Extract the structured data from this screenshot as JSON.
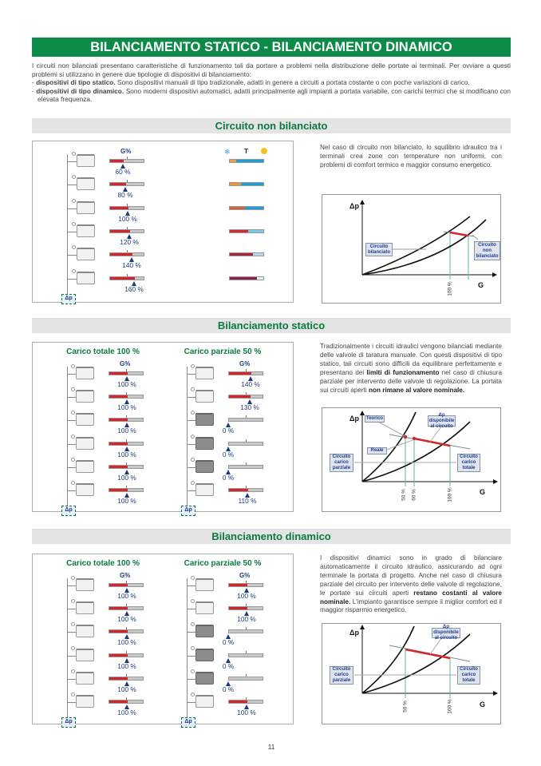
{
  "title": "BILANCIAMENTO STATICO - BILANCIAMENTO DINAMICO",
  "intro": {
    "p1": "I circuiti non bilanciati presentano caratteristiche di funzionamento tali da portare a problemi nella distribuzione delle portate ai terminali. Per ovviare a questi problemi si utilizzano in genere due tipologie di dispositivi di bilanciamento:",
    "items": [
      {
        "bold": "dispositivi di tipo statico.",
        "text": " Sono dispositivi manuali di tipo tradizionale, adatti in genere a circuiti a portata costante o con poche variazioni di carico."
      },
      {
        "bold": "dispositivi di tipo dinamico.",
        "text": " Sono moderni dispositivi automatici, adatti principalmente agli impianti a portata variabile, con carichi termici che si modificano con elevata frequenza."
      }
    ]
  },
  "colors": {
    "accent": "#0b8a48",
    "flow_fill": "#d3262c",
    "marker": "#1d3a7c"
  },
  "labels": {
    "g_percent": "G%",
    "dp": "Δp",
    "temp": "T",
    "axis_y": "Δp",
    "axis_x": "G"
  },
  "sections": [
    {
      "header": "Circuito non bilanciato",
      "rows": [
        {
          "value": "60 %",
          "pct": 60,
          "warm": "#e8a04a",
          "cool": "#1aa0d8",
          "warm_frac": 0.2
        },
        {
          "value": "80 %",
          "pct": 80,
          "warm": "#e8983a",
          "cool": "#1aa0d8",
          "warm_frac": 0.33
        },
        {
          "value": "100 %",
          "pct": 100,
          "warm": "#d9623a",
          "cool": "#1aa0d8",
          "warm_frac": 0.45
        },
        {
          "value": "120 %",
          "pct": 120,
          "warm": "#d42a30",
          "cool": "#7cc8e8",
          "warm_frac": 0.55
        },
        {
          "value": "140 %",
          "pct": 140,
          "warm": "#a8283a",
          "cool": "#b0dcee",
          "warm_frac": 0.68
        },
        {
          "value": "160 %",
          "pct": 160,
          "warm": "#8a2050",
          "cool": "#e0f0f6",
          "warm_frac": 0.8
        }
      ],
      "text": [
        {
          "t": "Nel caso di circuito non bilanciato, lo squilibrio idraulico tra i terminali crea zone con temperature non uniformi, con problemi di comfort termico e maggior consumo energetico."
        }
      ],
      "graph": {
        "labels": [
          "Circuito bilanciato",
          "Circuito non bilanciato"
        ],
        "ticks": [
          "100 %"
        ]
      }
    },
    {
      "header": "Bilanciamento statico",
      "panels": [
        {
          "title": "Carico totale 100 %",
          "rows": [
            {
              "value": "100 %",
              "pct": 100
            },
            {
              "value": "100 %",
              "pct": 100
            },
            {
              "value": "100 %",
              "pct": 100
            },
            {
              "value": "100 %",
              "pct": 100
            },
            {
              "value": "100 %",
              "pct": 100
            },
            {
              "value": "100 %",
              "pct": 100
            }
          ]
        },
        {
          "title": "Carico parziale 50 %",
          "rows": [
            {
              "value": "140 %",
              "pct": 140
            },
            {
              "value": "130 %",
              "pct": 130
            },
            {
              "value": "0 %",
              "pct": 0,
              "closed": true
            },
            {
              "value": "0 %",
              "pct": 0,
              "closed": true
            },
            {
              "value": "0 %",
              "pct": 0,
              "closed": true
            },
            {
              "value": "110 %",
              "pct": 110
            }
          ]
        }
      ],
      "text": [
        {
          "t": "Tradizionalmente i circuiti idraulici vengono bilanciati mediante delle valvole di taratura manuale. Con questi dispositivi di tipo statico, tali circuiti sono difficili da equilibrare perfettamente e presentano dei "
        },
        {
          "t": "limiti di funzionamento",
          "b": true
        },
        {
          "t": " nel caso di chiusura parziale per intervento delle valvole di regolazione. La portata sui circuiti aperti "
        },
        {
          "t": "non rimane al valore nominale.",
          "b": true
        }
      ],
      "graph": {
        "labels": [
          "Teorico",
          "Δp disponibile al circuito",
          "Reale",
          "Circuito carico parziale",
          "Circuito carico totale"
        ],
        "ticks": [
          "50 %",
          "60 %",
          "100 %"
        ]
      }
    },
    {
      "header": "Bilanciamento dinamico",
      "panels": [
        {
          "title": "Carico totale 100 %",
          "rows": [
            {
              "value": "100 %",
              "pct": 100
            },
            {
              "value": "100 %",
              "pct": 100
            },
            {
              "value": "100 %",
              "pct": 100
            },
            {
              "value": "100 %",
              "pct": 100
            },
            {
              "value": "100 %",
              "pct": 100
            },
            {
              "value": "100 %",
              "pct": 100
            }
          ]
        },
        {
          "title": "Carico parziale 50 %",
          "rows": [
            {
              "value": "100 %",
              "pct": 100
            },
            {
              "value": "100 %",
              "pct": 100
            },
            {
              "value": "0 %",
              "pct": 0,
              "closed": true
            },
            {
              "value": "0 %",
              "pct": 0,
              "closed": true
            },
            {
              "value": "0 %",
              "pct": 0,
              "closed": true
            },
            {
              "value": "100 %",
              "pct": 100
            }
          ]
        }
      ],
      "text": [
        {
          "t": "I dispositivi dinamici sono in grado di bilanciare automaticamente il circuito idraulico, assicurando ad ogni terminale la portata di progetto. Anche nel caso di chiusura parziale del circuito per intervento delle valvole di regolazione, le portate sui circuiti aperti "
        },
        {
          "t": "restano costanti al valore nominale.",
          "b": true
        },
        {
          "t": " L'impianto garantisce sempre il miglior comfort ed il maggior risparmio energetico."
        }
      ],
      "graph": {
        "labels": [
          "Δp disponibile al circuito",
          "Circuito carico parziale",
          "Circuito carico totale"
        ],
        "ticks": [
          "50 %",
          "100 %"
        ]
      }
    }
  ],
  "page_number": "11"
}
